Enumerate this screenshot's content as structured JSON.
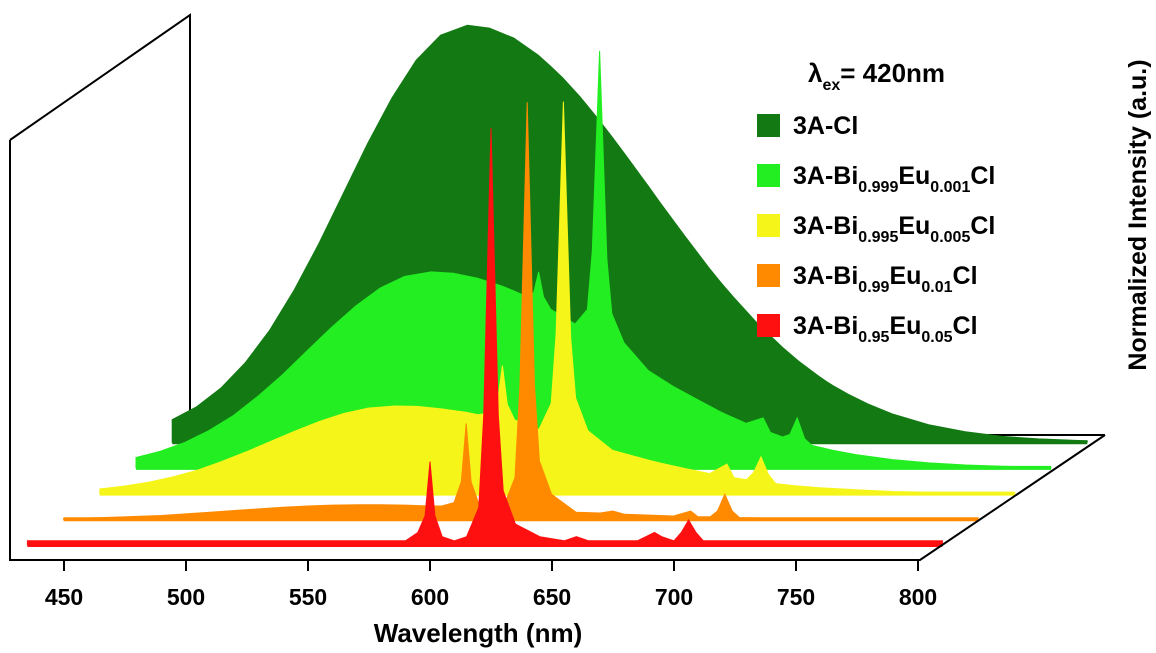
{
  "chart_data": {
    "type": "waterfall",
    "xlabel": "Wavelength (nm)",
    "ylabel": "Normalized Intensity (a.u.)",
    "annotation": "λex= 420nm",
    "xlim": [
      435,
      810
    ],
    "xticks": [
      450,
      500,
      550,
      600,
      650,
      700,
      750,
      800
    ],
    "ylim": [
      0,
      1
    ],
    "x": [
      435,
      445,
      455,
      465,
      475,
      485,
      495,
      505,
      515,
      525,
      535,
      545,
      556,
      565,
      575,
      585,
      590,
      595,
      598,
      600,
      602,
      605,
      610,
      615,
      620,
      622,
      625,
      628,
      630,
      635,
      645,
      655,
      660,
      665,
      675,
      685,
      692,
      695,
      700,
      703,
      706,
      709,
      712,
      720,
      730,
      745,
      760,
      775,
      790,
      810
    ],
    "series": [
      {
        "name": "3A-Cl",
        "color": "#137a13",
        "values": [
          0.054,
          0.085,
          0.13,
          0.191,
          0.269,
          0.365,
          0.475,
          0.595,
          0.715,
          0.825,
          0.916,
          0.976,
          1,
          0.993,
          0.969,
          0.928,
          0.902,
          0.874,
          0.855,
          0.842,
          0.829,
          0.808,
          0.772,
          0.734,
          0.695,
          0.679,
          0.655,
          0.631,
          0.615,
          0.574,
          0.495,
          0.418,
          0.382,
          0.348,
          0.284,
          0.228,
          0.193,
          0.18,
          0.158,
          0.146,
          0.135,
          0.125,
          0.115,
          0.092,
          0.068,
          0.042,
          0.025,
          0.014,
          0.008,
          0.003
        ]
      },
      {
        "name": "3A-Bi0.999Eu0.001Cl",
        "color": "#22ee22",
        "values": [
          0.025,
          0.04,
          0.061,
          0.09,
          0.126,
          0.172,
          0.223,
          0.28,
          0.336,
          0.388,
          0.431,
          0.459,
          0.47,
          0.467,
          0.455,
          0.436,
          0.424,
          0.411,
          0.42,
          0.47,
          0.41,
          0.38,
          0.363,
          0.345,
          0.38,
          0.52,
          1,
          0.5,
          0.37,
          0.3,
          0.233,
          0.196,
          0.18,
          0.164,
          0.133,
          0.107,
          0.12,
          0.085,
          0.074,
          0.08,
          0.12,
          0.07,
          0.054,
          0.043,
          0.032,
          0.02,
          0.012,
          0.007,
          0.004,
          0.001
        ]
      },
      {
        "name": "3A-Bi0.995Eu0.005Cl",
        "color": "#f5f51a",
        "values": [
          0.011,
          0.018,
          0.027,
          0.04,
          0.056,
          0.077,
          0.1,
          0.125,
          0.15,
          0.173,
          0.192,
          0.205,
          0.21,
          0.209,
          0.203,
          0.195,
          0.189,
          0.194,
          0.22,
          0.307,
          0.214,
          0.177,
          0.162,
          0.154,
          0.216,
          0.383,
          0.94,
          0.373,
          0.229,
          0.151,
          0.104,
          0.088,
          0.08,
          0.073,
          0.06,
          0.048,
          0.071,
          0.038,
          0.033,
          0.051,
          0.088,
          0.046,
          0.024,
          0.019,
          0.014,
          0.009,
          0.005,
          0.003,
          0.002,
          0.001
        ]
      },
      {
        "name": "3A-Bi0.99Eu0.01Cl",
        "color": "#ff8a00",
        "values": [
          0.002,
          0.003,
          0.005,
          0.007,
          0.009,
          0.013,
          0.017,
          0.021,
          0.025,
          0.029,
          0.032,
          0.034,
          0.035,
          0.035,
          0.034,
          0.032,
          0.032,
          0.04,
          0.09,
          0.23,
          0.09,
          0.04,
          0.027,
          0.026,
          0.1,
          0.32,
          1,
          0.32,
          0.14,
          0.06,
          0.017,
          0.015,
          0.02,
          0.012,
          0.01,
          0.008,
          0.02,
          0.006,
          0.006,
          0.02,
          0.06,
          0.02,
          0.004,
          0.003,
          0.002,
          0.001,
          0.001,
          0,
          0,
          0
        ]
      },
      {
        "name": "3A-Bi0.95Eu0.05Cl",
        "color": "#ff1010",
        "values": [
          0.01,
          0.01,
          0.01,
          0.01,
          0.01,
          0.01,
          0.01,
          0.01,
          0.01,
          0.01,
          0.01,
          0.01,
          0.01,
          0.01,
          0.01,
          0.01,
          0.01,
          0.03,
          0.07,
          0.2,
          0.07,
          0.02,
          0.01,
          0.02,
          0.09,
          0.31,
          1,
          0.31,
          0.13,
          0.05,
          0.02,
          0.01,
          0.02,
          0.01,
          0.01,
          0.01,
          0.03,
          0.02,
          0.01,
          0.03,
          0.06,
          0.03,
          0.01,
          0.01,
          0.01,
          0.01,
          0.01,
          0.01,
          0.01,
          0.01
        ]
      }
    ]
  }
}
